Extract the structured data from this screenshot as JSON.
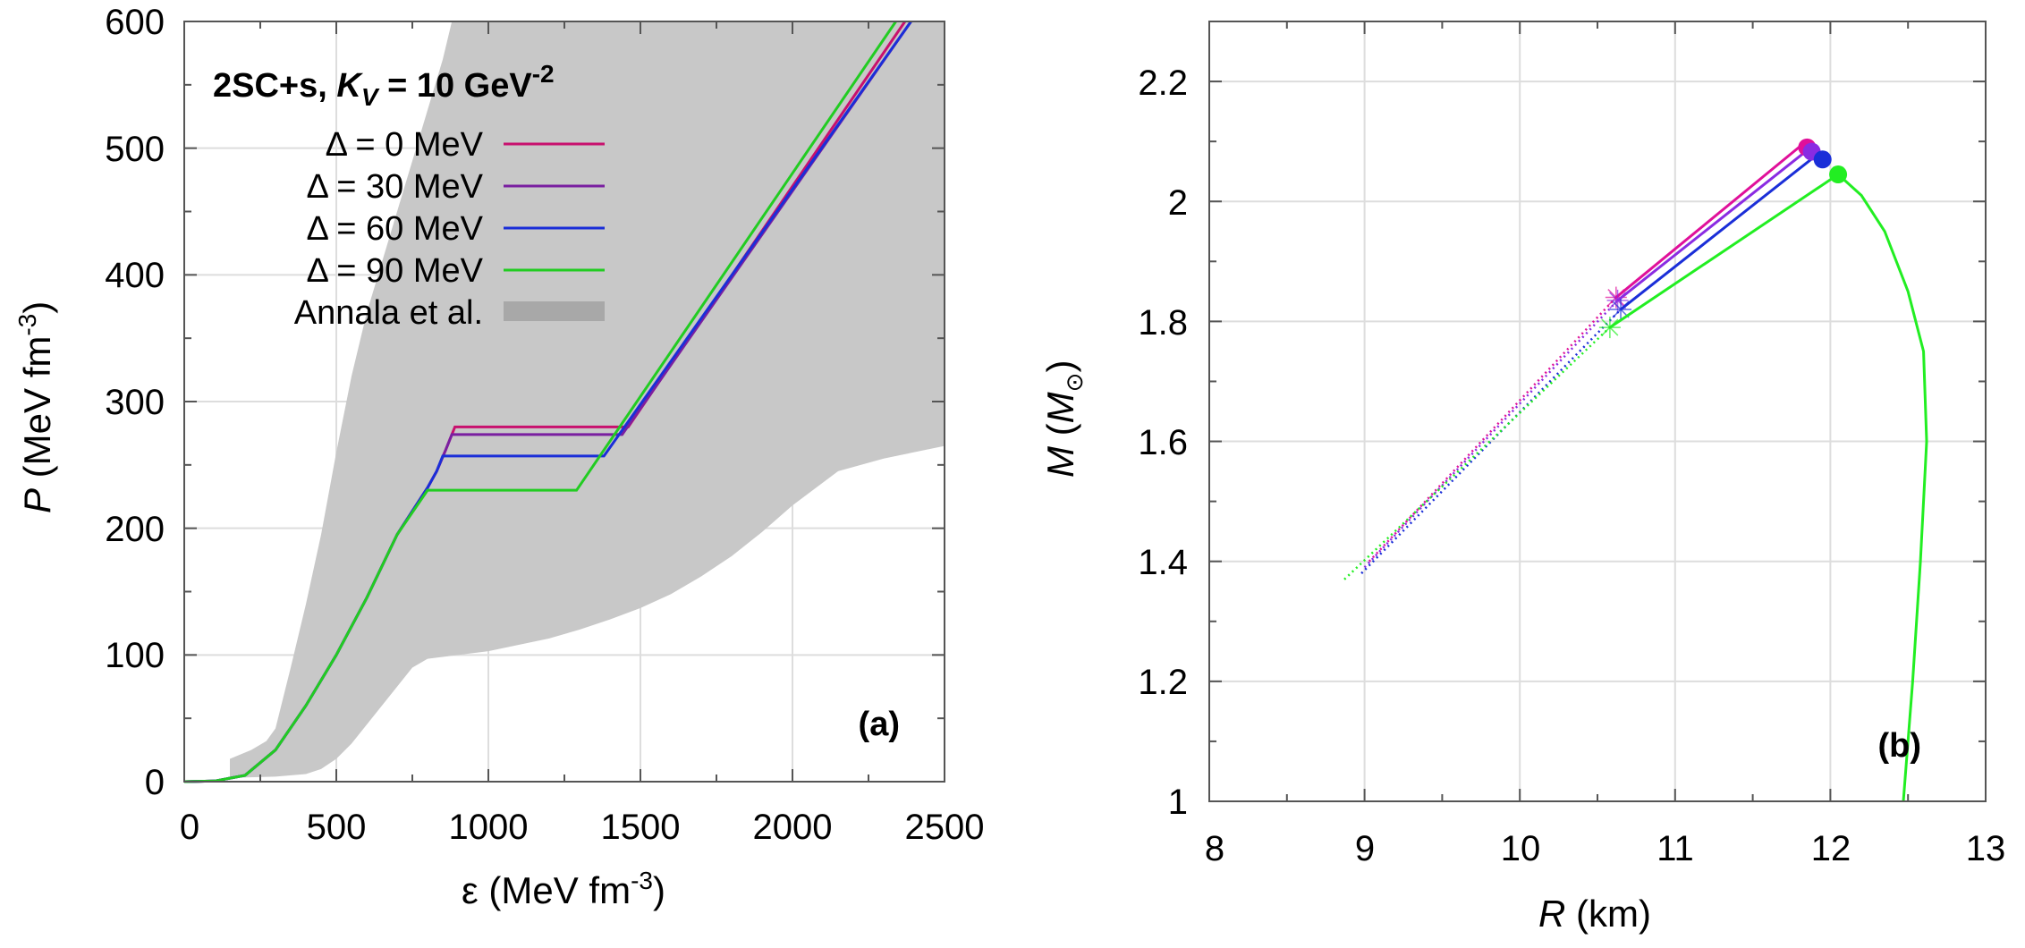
{
  "chart_data": [
    {
      "id": "a",
      "type": "line",
      "panel_label": "(a)",
      "title": {
        "prefix": "2SC+s, ",
        "k": "K",
        "k_sub": "V",
        "eq": " = 10  GeV",
        "sup": "-2"
      },
      "xlabel": {
        "main": "ε (MeV fm",
        "sup": "-3",
        "close": ")"
      },
      "ylabel": {
        "main": "(MeV fm",
        "var": "P",
        "sup": "-3",
        "close": ")"
      },
      "xlim": [
        0,
        2500
      ],
      "ylim": [
        0,
        600
      ],
      "xticks": [
        "0",
        "500",
        "1000",
        "1500",
        "2000",
        "2500"
      ],
      "yticks": [
        "0",
        "100",
        "200",
        "300",
        "400",
        "500",
        "600"
      ],
      "band": {
        "name": "Annala et al.",
        "color": "#c8c8c8",
        "upper": [
          [
            150,
            18
          ],
          [
            220,
            25
          ],
          [
            270,
            32
          ],
          [
            300,
            42
          ],
          [
            350,
            90
          ],
          [
            400,
            140
          ],
          [
            450,
            195
          ],
          [
            500,
            260
          ],
          [
            550,
            320
          ],
          [
            600,
            370
          ],
          [
            650,
            410
          ],
          [
            700,
            450
          ],
          [
            750,
            490
          ],
          [
            800,
            530
          ],
          [
            850,
            570
          ],
          [
            880,
            600
          ]
        ],
        "lower": [
          [
            150,
            3
          ],
          [
            300,
            4
          ],
          [
            400,
            6
          ],
          [
            450,
            10
          ],
          [
            500,
            18
          ],
          [
            550,
            30
          ],
          [
            600,
            45
          ],
          [
            650,
            60
          ],
          [
            700,
            75
          ],
          [
            750,
            90
          ],
          [
            800,
            97
          ],
          [
            900,
            100
          ],
          [
            1000,
            103
          ],
          [
            1100,
            108
          ],
          [
            1200,
            113
          ],
          [
            1300,
            120
          ],
          [
            1400,
            128
          ],
          [
            1500,
            137
          ],
          [
            1600,
            148
          ],
          [
            1700,
            162
          ],
          [
            1800,
            178
          ],
          [
            1900,
            197
          ],
          [
            2000,
            218
          ],
          [
            2150,
            245
          ],
          [
            2300,
            255
          ],
          [
            2500,
            265
          ]
        ]
      },
      "series": [
        {
          "name": "Δ = 0 MeV",
          "color": "#c8106e",
          "points": [
            [
              0,
              0
            ],
            [
              100,
              0.5
            ],
            [
              200,
              5
            ],
            [
              300,
              25
            ],
            [
              400,
              60
            ],
            [
              500,
              100
            ],
            [
              600,
              145
            ],
            [
              700,
              195
            ],
            [
              800,
              232
            ],
            [
              830,
              245
            ],
            [
              860,
              262
            ],
            [
              890,
              280
            ],
            [
              1460,
              280
            ],
            [
              2370,
              600
            ]
          ]
        },
        {
          "name": "Δ = 30 MeV",
          "color": "#7a1fa0",
          "points": [
            [
              0,
              0
            ],
            [
              100,
              0.5
            ],
            [
              200,
              5
            ],
            [
              300,
              25
            ],
            [
              400,
              60
            ],
            [
              500,
              100
            ],
            [
              600,
              145
            ],
            [
              700,
              195
            ],
            [
              800,
              232
            ],
            [
              830,
              245
            ],
            [
              860,
              262
            ],
            [
              880,
              274
            ],
            [
              1440,
              274
            ],
            [
              2390,
              600
            ]
          ]
        },
        {
          "name": "Δ = 60 MeV",
          "color": "#1a2ed8",
          "points": [
            [
              0,
              0
            ],
            [
              100,
              0.5
            ],
            [
              200,
              5
            ],
            [
              300,
              25
            ],
            [
              400,
              60
            ],
            [
              500,
              100
            ],
            [
              600,
              145
            ],
            [
              700,
              195
            ],
            [
              800,
              232
            ],
            [
              830,
              245
            ],
            [
              850,
              257
            ],
            [
              1380,
              257
            ],
            [
              2390,
              600
            ]
          ]
        },
        {
          "name": "Δ = 90 MeV",
          "color": "#22cc22",
          "points": [
            [
              0,
              0
            ],
            [
              100,
              0.5
            ],
            [
              200,
              5
            ],
            [
              300,
              25
            ],
            [
              400,
              60
            ],
            [
              500,
              100
            ],
            [
              600,
              145
            ],
            [
              700,
              195
            ],
            [
              800,
              230
            ],
            [
              1290,
              230
            ],
            [
              2340,
              600
            ]
          ]
        }
      ]
    },
    {
      "id": "b",
      "type": "line",
      "panel_label": "(b)",
      "xlabel": {
        "var": "R",
        "unit": " (km)"
      },
      "ylabel": {
        "var": "M",
        "open": " (",
        "sym": "M",
        "sub": "⊙",
        "close": ")"
      },
      "xlim": [
        8,
        13
      ],
      "ylim": [
        1,
        2.3
      ],
      "xticks": [
        "8",
        "9",
        "10",
        "11",
        "12",
        "13"
      ],
      "yticks": [
        "1",
        "1.2",
        "1.4",
        "1.6",
        "1.8",
        "2",
        "2.2"
      ],
      "hadronic_branch": {
        "color": "#22ee22",
        "points": [
          [
            12.47,
            1.0
          ],
          [
            12.53,
            1.2
          ],
          [
            12.58,
            1.4
          ],
          [
            12.62,
            1.6
          ],
          [
            12.6,
            1.75
          ],
          [
            12.5,
            1.85
          ],
          [
            12.35,
            1.95
          ],
          [
            12.2,
            2.01
          ],
          [
            12.05,
            2.045
          ]
        ]
      },
      "series": [
        {
          "name": "Δ = 0 MeV",
          "color": "#e0109a",
          "solid": [
            [
              10.62,
              1.84
            ],
            [
              11.82,
              2.095
            ]
          ],
          "dotted": [
            [
              9.03,
              1.4
            ],
            [
              10.62,
              1.84
            ]
          ],
          "max": [
            11.85,
            2.09
          ]
        },
        {
          "name": "Δ = 30 MeV",
          "color": "#8a2be2",
          "solid": [
            [
              10.63,
              1.835
            ],
            [
              11.85,
              2.085
            ]
          ],
          "dotted": [
            [
              9.0,
              1.39
            ],
            [
              10.63,
              1.835
            ]
          ],
          "max": [
            11.88,
            2.083
          ]
        },
        {
          "name": "Δ = 60 MeV",
          "color": "#1a2ed8",
          "solid": [
            [
              10.65,
              1.82
            ],
            [
              11.9,
              2.075
            ]
          ],
          "dotted": [
            [
              8.98,
              1.38
            ],
            [
              10.65,
              1.82
            ]
          ],
          "max": [
            11.95,
            2.07
          ]
        },
        {
          "name": "Δ = 90 MeV",
          "color": "#22ee22",
          "solid": [
            [
              10.58,
              1.79
            ],
            [
              12.05,
              2.045
            ]
          ],
          "dotted": [
            [
              8.87,
              1.37
            ],
            [
              10.58,
              1.79
            ]
          ],
          "max": [
            12.05,
            2.045
          ]
        }
      ]
    }
  ]
}
